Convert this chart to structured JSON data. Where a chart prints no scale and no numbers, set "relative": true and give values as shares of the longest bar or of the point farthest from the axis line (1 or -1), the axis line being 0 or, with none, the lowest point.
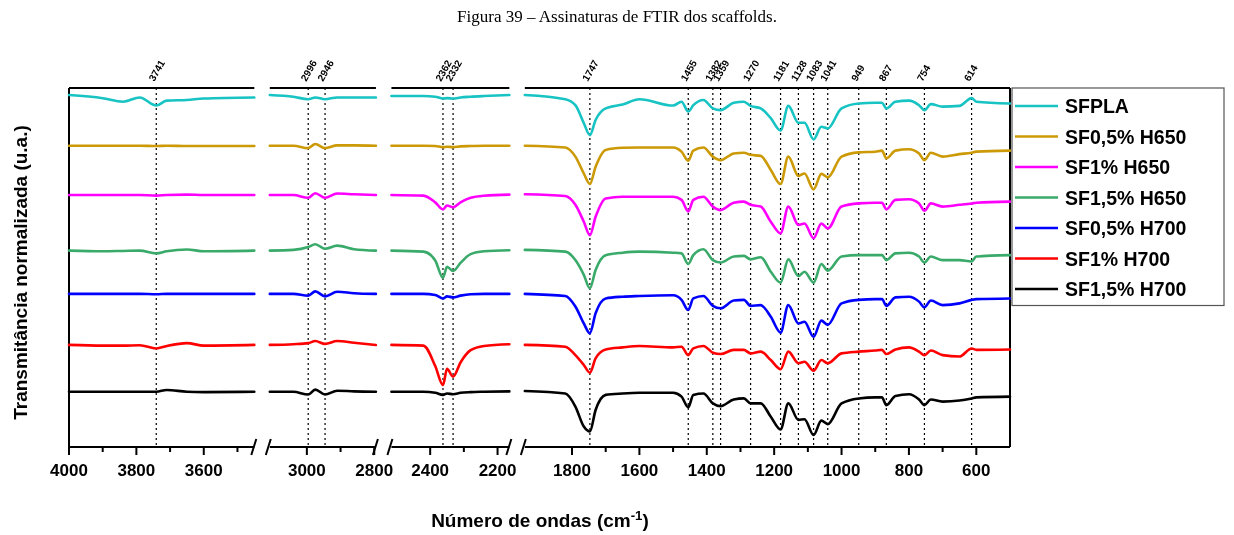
{
  "chart_data": [
    {
      "type": "line",
      "ylabel": "Transmitância normalizada (u.a.)",
      "relative": true,
      "xlim": [
        4000,
        3450
      ],
      "xticks": [
        4000,
        {
          "value": 3900,
          "label": null
        },
        3800,
        {
          "value": 3700,
          "label": null
        },
        3600,
        {
          "value": 3500,
          "label": null
        }
      ],
      "x": [
        4000,
        3900,
        3840,
        3790,
        3741,
        3710,
        3650,
        3600,
        3450
      ],
      "series": [
        {
          "color": "#17c3c3",
          "values": [
            1.0,
            0.991,
            0.981,
            0.993,
            0.97,
            0.984,
            0.986,
            0.99,
            0.993
          ]
        },
        {
          "color": "#cc9a06",
          "values": [
            0.856,
            0.856,
            0.856,
            0.856,
            0.855,
            0.856,
            0.855,
            0.855,
            0.855
          ]
        },
        {
          "color": "#ff00ff",
          "values": [
            0.716,
            0.716,
            0.716,
            0.716,
            0.714,
            0.716,
            0.717,
            0.716,
            0.716
          ]
        },
        {
          "color": "#3aaa6a",
          "values": [
            0.558,
            0.556,
            0.557,
            0.558,
            0.55,
            0.556,
            0.561,
            0.556,
            0.558
          ]
        },
        {
          "color": "#0000ff",
          "values": [
            0.435,
            0.435,
            0.435,
            0.435,
            0.434,
            0.435,
            0.435,
            0.435,
            0.435
          ]
        },
        {
          "color": "#ff0000",
          "values": [
            0.29,
            0.288,
            0.288,
            0.289,
            0.28,
            0.287,
            0.295,
            0.288,
            0.29
          ]
        },
        {
          "color": "#000000",
          "values": [
            0.157,
            0.157,
            0.157,
            0.157,
            0.157,
            0.162,
            0.157,
            0.156,
            0.157
          ]
        }
      ],
      "ref_lines": [
        {
          "axis": "x",
          "value": 3741,
          "label": "3741",
          "line_style": "dotted",
          "color": "#000000"
        }
      ]
    },
    {
      "type": "line",
      "relative": true,
      "tick_labels": "x",
      "xlim": [
        3110,
        2795
      ],
      "xticks": [
        3000,
        {
          "value": 2900,
          "label": null
        },
        2800
      ],
      "x": [
        3110,
        3040,
        2996,
        2975,
        2946,
        2910,
        2860,
        2795
      ],
      "series": [
        {
          "color": "#17c3c3",
          "values": [
            1.0,
            0.995,
            0.988,
            0.993,
            0.988,
            0.993,
            0.993,
            0.993
          ]
        },
        {
          "color": "#cc9a06",
          "values": [
            0.856,
            0.856,
            0.849,
            0.861,
            0.849,
            0.857,
            0.857,
            0.856
          ]
        },
        {
          "color": "#ff00ff",
          "values": [
            0.716,
            0.716,
            0.708,
            0.721,
            0.708,
            0.72,
            0.718,
            0.716
          ]
        },
        {
          "color": "#3aaa6a",
          "values": [
            0.558,
            0.56,
            0.568,
            0.576,
            0.563,
            0.572,
            0.562,
            0.558
          ]
        },
        {
          "color": "#0000ff",
          "values": [
            0.435,
            0.435,
            0.43,
            0.442,
            0.428,
            0.441,
            0.437,
            0.435
          ]
        },
        {
          "color": "#ff0000",
          "values": [
            0.29,
            0.292,
            0.295,
            0.301,
            0.293,
            0.301,
            0.296,
            0.29
          ]
        },
        {
          "color": "#000000",
          "values": [
            0.157,
            0.157,
            0.149,
            0.163,
            0.149,
            0.16,
            0.158,
            0.157
          ]
        }
      ],
      "ref_lines": [
        {
          "axis": "x",
          "value": 2996,
          "label": "2996",
          "line_style": "dotted",
          "color": "#000000"
        },
        {
          "axis": "x",
          "value": 2946,
          "label": "2946",
          "line_style": "dotted",
          "color": "#000000"
        }
      ]
    },
    {
      "type": "line",
      "relative": true,
      "tick_labels": "x",
      "xlim": [
        2515,
        2165
      ],
      "xticks": [
        2400,
        {
          "value": 2300,
          "label": null
        },
        2200
      ],
      "x": [
        2515,
        2420,
        2385,
        2362,
        2350,
        2332,
        2310,
        2280,
        2240,
        2165
      ],
      "series": [
        {
          "color": "#17c3c3",
          "values": [
            0.997,
            0.997,
            0.995,
            0.99,
            0.991,
            0.99,
            0.993,
            0.995,
            0.997,
            1.0
          ]
        },
        {
          "color": "#cc9a06",
          "values": [
            0.856,
            0.856,
            0.855,
            0.852,
            0.853,
            0.852,
            0.854,
            0.855,
            0.856,
            0.856
          ]
        },
        {
          "color": "#ff00ff",
          "values": [
            0.716,
            0.714,
            0.695,
            0.675,
            0.686,
            0.681,
            0.695,
            0.708,
            0.714,
            0.717
          ]
        },
        {
          "color": "#3aaa6a",
          "values": [
            0.558,
            0.555,
            0.53,
            0.481,
            0.512,
            0.5,
            0.523,
            0.548,
            0.556,
            0.559
          ]
        },
        {
          "color": "#0000ff",
          "values": [
            0.435,
            0.435,
            0.432,
            0.422,
            0.428,
            0.425,
            0.43,
            0.434,
            0.435,
            0.435
          ]
        },
        {
          "color": "#ff0000",
          "values": [
            0.29,
            0.288,
            0.23,
            0.176,
            0.222,
            0.2,
            0.24,
            0.275,
            0.287,
            0.292
          ]
        },
        {
          "color": "#000000",
          "values": [
            0.157,
            0.157,
            0.154,
            0.148,
            0.152,
            0.15,
            0.154,
            0.156,
            0.157,
            0.158
          ]
        }
      ],
      "ref_lines": [
        {
          "axis": "x",
          "value": 2362,
          "label": "2362",
          "line_style": "dotted",
          "color": "#000000"
        },
        {
          "axis": "x",
          "value": 2332,
          "label": "2332",
          "line_style": "dotted",
          "color": "#000000"
        }
      ]
    },
    {
      "type": "line",
      "title": "Figura 39 – Assinaturas de FTIR dos scaffolds.",
      "xlabel": "Número de ondas (cm$^{-1}$)",
      "relative": true,
      "tick_labels": "x",
      "legend": "right",
      "xlim": [
        1940,
        500
      ],
      "xticks": [
        1800,
        {
          "value": 1700,
          "label": null
        },
        1600,
        {
          "value": 1500,
          "label": null
        },
        1400,
        {
          "value": 1300,
          "label": null
        },
        1200,
        {
          "value": 1100,
          "label": null
        },
        1000,
        {
          "value": 900,
          "label": null
        },
        800,
        {
          "value": 700,
          "label": null
        },
        600
      ],
      "x": [
        1940,
        1820,
        1790,
        1765,
        1747,
        1730,
        1700,
        1650,
        1600,
        1500,
        1475,
        1455,
        1440,
        1410,
        1382,
        1359,
        1320,
        1290,
        1270,
        1240,
        1210,
        1181,
        1158,
        1128,
        1110,
        1083,
        1060,
        1041,
        1000,
        949,
        900,
        880,
        867,
        840,
        800,
        770,
        754,
        735,
        700,
        650,
        614,
        600,
        500
      ],
      "series": [
        {
          "name": "SFPLA",
          "color": "#17c3c3",
          "values": [
            1.0,
            0.988,
            0.971,
            0.92,
            0.886,
            0.929,
            0.962,
            0.973,
            0.988,
            0.97,
            0.981,
            0.953,
            0.971,
            0.986,
            0.962,
            0.957,
            0.978,
            0.981,
            0.969,
            0.962,
            0.934,
            0.899,
            0.969,
            0.921,
            0.921,
            0.874,
            0.91,
            0.905,
            0.962,
            0.976,
            0.978,
            0.978,
            0.962,
            0.981,
            0.984,
            0.971,
            0.957,
            0.974,
            0.967,
            0.969,
            0.991,
            0.981,
            0.976
          ]
        },
        {
          "name": "SF0,5% H650",
          "color": "#cc9a06",
          "values": [
            0.856,
            0.851,
            0.825,
            0.777,
            0.747,
            0.796,
            0.844,
            0.85,
            0.851,
            0.851,
            0.839,
            0.813,
            0.842,
            0.851,
            0.825,
            0.815,
            0.834,
            0.836,
            0.83,
            0.827,
            0.787,
            0.747,
            0.825,
            0.77,
            0.777,
            0.732,
            0.776,
            0.766,
            0.825,
            0.837,
            0.839,
            0.842,
            0.82,
            0.842,
            0.846,
            0.834,
            0.815,
            0.836,
            0.825,
            0.832,
            0.836,
            0.839,
            0.842
          ]
        },
        {
          "name": "SF1% H650",
          "color": "#ff00ff",
          "values": [
            0.718,
            0.713,
            0.688,
            0.64,
            0.602,
            0.654,
            0.706,
            0.711,
            0.711,
            0.711,
            0.702,
            0.669,
            0.702,
            0.711,
            0.683,
            0.673,
            0.694,
            0.697,
            0.688,
            0.683,
            0.64,
            0.607,
            0.683,
            0.631,
            0.635,
            0.593,
            0.635,
            0.621,
            0.683,
            0.692,
            0.694,
            0.694,
            0.675,
            0.702,
            0.704,
            0.692,
            0.671,
            0.692,
            0.683,
            0.688,
            0.692,
            0.694,
            0.697
          ]
        },
        {
          "name": "SF1,5% H650",
          "color": "#3aaa6a",
          "values": [
            0.56,
            0.555,
            0.531,
            0.489,
            0.451,
            0.503,
            0.545,
            0.552,
            0.555,
            0.552,
            0.55,
            0.52,
            0.545,
            0.562,
            0.531,
            0.524,
            0.541,
            0.543,
            0.533,
            0.539,
            0.498,
            0.467,
            0.533,
            0.486,
            0.498,
            0.467,
            0.52,
            0.501,
            0.541,
            0.545,
            0.545,
            0.545,
            0.531,
            0.55,
            0.552,
            0.541,
            0.524,
            0.541,
            0.531,
            0.531,
            0.527,
            0.541,
            0.545
          ]
        },
        {
          "name": "SF0,5% H700",
          "color": "#0000ff",
          "values": [
            0.435,
            0.429,
            0.399,
            0.351,
            0.323,
            0.38,
            0.422,
            0.427,
            0.429,
            0.431,
            0.418,
            0.389,
            0.422,
            0.429,
            0.401,
            0.394,
            0.416,
            0.418,
            0.401,
            0.403,
            0.37,
            0.325,
            0.403,
            0.351,
            0.356,
            0.313,
            0.359,
            0.347,
            0.408,
            0.418,
            0.42,
            0.42,
            0.401,
            0.425,
            0.427,
            0.413,
            0.397,
            0.416,
            0.403,
            0.408,
            0.418,
            0.42,
            0.422
          ]
        },
        {
          "name": "SF1% H700",
          "color": "#ff0000",
          "values": [
            0.29,
            0.285,
            0.261,
            0.233,
            0.211,
            0.252,
            0.277,
            0.283,
            0.287,
            0.283,
            0.285,
            0.261,
            0.28,
            0.287,
            0.268,
            0.264,
            0.276,
            0.276,
            0.266,
            0.271,
            0.247,
            0.221,
            0.271,
            0.238,
            0.242,
            0.217,
            0.247,
            0.238,
            0.266,
            0.271,
            0.274,
            0.276,
            0.264,
            0.277,
            0.283,
            0.271,
            0.261,
            0.274,
            0.261,
            0.257,
            0.28,
            0.276,
            0.277
          ]
        },
        {
          "name": "SF1,5% H700",
          "color": "#000000",
          "values": [
            0.159,
            0.152,
            0.115,
            0.058,
            0.044,
            0.105,
            0.148,
            0.152,
            0.154,
            0.154,
            0.143,
            0.113,
            0.148,
            0.152,
            0.124,
            0.116,
            0.135,
            0.138,
            0.124,
            0.124,
            0.086,
            0.05,
            0.124,
            0.077,
            0.079,
            0.034,
            0.075,
            0.065,
            0.124,
            0.138,
            0.141,
            0.141,
            0.119,
            0.145,
            0.15,
            0.135,
            0.119,
            0.135,
            0.129,
            0.132,
            0.138,
            0.141,
            0.143
          ]
        }
      ],
      "ref_lines": [
        {
          "axis": "x",
          "value": 1747,
          "label": "1747",
          "line_style": "dotted",
          "color": "#000000"
        },
        {
          "axis": "x",
          "value": 1455,
          "label": "1455",
          "line_style": "dotted",
          "color": "#000000"
        },
        {
          "axis": "x",
          "value": 1382,
          "label": "1382",
          "line_style": "dotted",
          "color": "#000000"
        },
        {
          "axis": "x",
          "value": 1359,
          "label": "1359",
          "line_style": "dotted",
          "color": "#000000"
        },
        {
          "axis": "x",
          "value": 1270,
          "label": "1270",
          "line_style": "dotted",
          "color": "#000000"
        },
        {
          "axis": "x",
          "value": 1181,
          "label": "1181",
          "line_style": "dotted",
          "color": "#000000"
        },
        {
          "axis": "x",
          "value": 1128,
          "label": "1128",
          "line_style": "dotted",
          "color": "#000000"
        },
        {
          "axis": "x",
          "value": 1083,
          "label": "1083",
          "line_style": "dotted",
          "color": "#000000"
        },
        {
          "axis": "x",
          "value": 1041,
          "label": "1041",
          "line_style": "dotted",
          "color": "#000000"
        },
        {
          "axis": "x",
          "value": 949,
          "label": "949",
          "line_style": "dotted",
          "color": "#000000"
        },
        {
          "axis": "x",
          "value": 867,
          "label": "867",
          "line_style": "dotted",
          "color": "#000000"
        },
        {
          "axis": "x",
          "value": 754,
          "label": "754",
          "line_style": "dotted",
          "color": "#000000"
        },
        {
          "axis": "x",
          "value": 614,
          "label": "614",
          "line_style": "dotted",
          "color": "#000000"
        }
      ]
    }
  ]
}
